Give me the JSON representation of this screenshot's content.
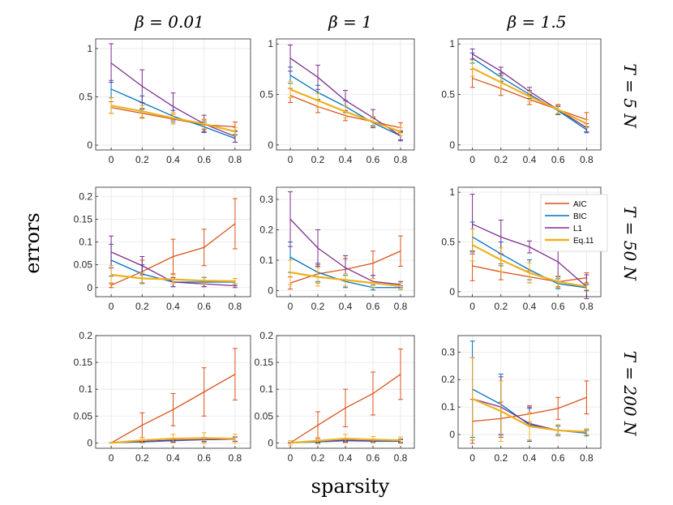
{
  "figure": {
    "xlabel": "sparsity",
    "ylabel": "errors",
    "col_titles": [
      "β = 0.01",
      "β = 1",
      "β = 1.5"
    ],
    "row_titles": [
      "T = 5 N",
      "T = 50 N",
      "T = 200 N"
    ],
    "colors": {
      "AIC": "#D95319",
      "BIC": "#0072BD",
      "L1": "#7E2F8E",
      "Eq.11": "#EDB120"
    }
  },
  "chart_data": [
    {
      "type": "line",
      "row": 0,
      "col": 0,
      "x": [
        0,
        0.2,
        0.4,
        0.6,
        0.8
      ],
      "xlim": [
        -0.1,
        0.9
      ],
      "ylim": [
        -0.05,
        1.1
      ],
      "yticks": [
        0,
        0.5,
        1
      ],
      "yticklabels": [
        "0",
        "0.5",
        "1"
      ],
      "xticklabels": [
        "0",
        "0.2",
        "0.4",
        "0.6",
        "0.8"
      ],
      "series": [
        {
          "name": "AIC",
          "values": [
            0.39,
            0.33,
            0.27,
            0.21,
            0.19
          ],
          "err": [
            0.06,
            0.05,
            0.05,
            0.05,
            0.05
          ]
        },
        {
          "name": "BIC",
          "values": [
            0.58,
            0.44,
            0.3,
            0.19,
            0.07
          ],
          "err": [
            0.09,
            0.07,
            0.06,
            0.05,
            0.04
          ]
        },
        {
          "name": "L1",
          "values": [
            0.85,
            0.61,
            0.4,
            0.22,
            0.09
          ],
          "err": [
            0.2,
            0.17,
            0.14,
            0.09,
            0.06
          ]
        },
        {
          "name": "Eq.11",
          "values": [
            0.41,
            0.35,
            0.28,
            0.22,
            0.14
          ],
          "err": [
            0.08,
            0.06,
            0.06,
            0.05,
            0.04
          ]
        }
      ]
    },
    {
      "type": "line",
      "row": 0,
      "col": 1,
      "x": [
        0,
        0.2,
        0.4,
        0.6,
        0.8
      ],
      "xlim": [
        -0.1,
        0.9
      ],
      "ylim": [
        -0.05,
        1.05
      ],
      "yticks": [
        0,
        0.5,
        1
      ],
      "yticklabels": [
        "0",
        "0.5",
        "1"
      ],
      "xticklabels": [
        "0",
        "0.2",
        "0.4",
        "0.6",
        "0.8"
      ],
      "series": [
        {
          "name": "AIC",
          "values": [
            0.49,
            0.38,
            0.29,
            0.23,
            0.17
          ],
          "err": [
            0.07,
            0.06,
            0.05,
            0.05,
            0.05
          ]
        },
        {
          "name": "BIC",
          "values": [
            0.69,
            0.52,
            0.38,
            0.22,
            0.09
          ],
          "err": [
            0.08,
            0.07,
            0.06,
            0.05,
            0.04
          ]
        },
        {
          "name": "L1",
          "values": [
            0.86,
            0.67,
            0.44,
            0.27,
            0.09
          ],
          "err": [
            0.13,
            0.12,
            0.1,
            0.08,
            0.05
          ]
        },
        {
          "name": "Eq.11",
          "values": [
            0.55,
            0.44,
            0.33,
            0.23,
            0.13
          ],
          "err": [
            0.08,
            0.07,
            0.06,
            0.05,
            0.04
          ]
        }
      ]
    },
    {
      "type": "line",
      "row": 0,
      "col": 2,
      "x": [
        0,
        0.2,
        0.4,
        0.6,
        0.8
      ],
      "xlim": [
        -0.1,
        0.9
      ],
      "ylim": [
        -0.05,
        1.05
      ],
      "yticks": [
        0,
        0.5,
        1
      ],
      "yticklabels": [
        "0",
        "0.5",
        "1"
      ],
      "xticklabels": [
        "0",
        "0.2",
        "0.4",
        "0.6",
        "0.8"
      ],
      "series": [
        {
          "name": "AIC",
          "values": [
            0.66,
            0.56,
            0.45,
            0.35,
            0.25
          ],
          "err": [
            0.09,
            0.07,
            0.05,
            0.05,
            0.07
          ]
        },
        {
          "name": "BIC",
          "values": [
            0.86,
            0.67,
            0.5,
            0.34,
            0.15
          ],
          "err": [
            0.05,
            0.04,
            0.04,
            0.04,
            0.03
          ]
        },
        {
          "name": "L1",
          "values": [
            0.9,
            0.73,
            0.53,
            0.35,
            0.17
          ],
          "err": [
            0.05,
            0.04,
            0.04,
            0.04,
            0.04
          ]
        },
        {
          "name": "Eq.11",
          "values": [
            0.76,
            0.62,
            0.48,
            0.35,
            0.21
          ],
          "err": [
            0.08,
            0.06,
            0.05,
            0.04,
            0.04
          ]
        }
      ]
    },
    {
      "type": "line",
      "row": 1,
      "col": 0,
      "x": [
        0,
        0.2,
        0.4,
        0.6,
        0.8
      ],
      "xlim": [
        -0.1,
        0.9
      ],
      "ylim": [
        -0.02,
        0.22
      ],
      "yticks": [
        0,
        0.05,
        0.1,
        0.15,
        0.2
      ],
      "yticklabels": [
        "0",
        "0.05",
        "0.1",
        "0.15",
        "0.2"
      ],
      "xticklabels": [
        "0",
        "0.2",
        "0.4",
        "0.6",
        "0.8"
      ],
      "series": [
        {
          "name": "AIC",
          "values": [
            0.005,
            0.035,
            0.068,
            0.088,
            0.14
          ],
          "err": [
            0.005,
            0.025,
            0.038,
            0.04,
            0.055
          ]
        },
        {
          "name": "BIC",
          "values": [
            0.06,
            0.03,
            0.012,
            0.012,
            0.012
          ],
          "err": [
            0.035,
            0.02,
            0.01,
            0.01,
            0.008
          ]
        },
        {
          "name": "L1",
          "values": [
            0.078,
            0.048,
            0.012,
            0.008,
            0.004
          ],
          "err": [
            0.035,
            0.02,
            0.01,
            0.006,
            0.004
          ]
        },
        {
          "name": "Eq.11",
          "values": [
            0.028,
            0.02,
            0.018,
            0.015,
            0.014
          ],
          "err": [
            0.02,
            0.012,
            0.01,
            0.008,
            0.006
          ]
        }
      ]
    },
    {
      "type": "line",
      "row": 1,
      "col": 1,
      "x": [
        0,
        0.2,
        0.4,
        0.6,
        0.8
      ],
      "xlim": [
        -0.1,
        0.9
      ],
      "ylim": [
        -0.02,
        0.34
      ],
      "yticks": [
        0,
        0.1,
        0.2,
        0.3
      ],
      "yticklabels": [
        "0",
        "0.1",
        "0.2",
        "0.3"
      ],
      "xticklabels": [
        "0",
        "0.2",
        "0.4",
        "0.6",
        "0.8"
      ],
      "series": [
        {
          "name": "AIC",
          "values": [
            0.025,
            0.055,
            0.07,
            0.09,
            0.13
          ],
          "err": [
            0.02,
            0.03,
            0.035,
            0.04,
            0.05
          ]
        },
        {
          "name": "BIC",
          "values": [
            0.11,
            0.06,
            0.03,
            0.01,
            0.01
          ],
          "err": [
            0.05,
            0.03,
            0.02,
            0.008,
            0.006
          ]
        },
        {
          "name": "L1",
          "values": [
            0.235,
            0.14,
            0.075,
            0.03,
            0.02
          ],
          "err": [
            0.09,
            0.06,
            0.04,
            0.02,
            0.01
          ]
        },
        {
          "name": "Eq.11",
          "values": [
            0.06,
            0.045,
            0.035,
            0.025,
            0.015
          ],
          "err": [
            0.04,
            0.03,
            0.02,
            0.015,
            0.01
          ]
        }
      ]
    },
    {
      "type": "line",
      "row": 1,
      "col": 2,
      "x": [
        0,
        0.2,
        0.4,
        0.6,
        0.8
      ],
      "xlim": [
        -0.1,
        0.9
      ],
      "ylim": [
        -0.05,
        1.05
      ],
      "yticks": [
        0,
        0.5,
        1
      ],
      "yticklabels": [
        "0",
        "0.5",
        "1"
      ],
      "xticklabels": [
        "0",
        "0.2",
        "0.4",
        "0.6",
        "0.8"
      ],
      "series": [
        {
          "name": "AIC",
          "values": [
            0.26,
            0.2,
            0.15,
            0.1,
            0.14
          ],
          "err": [
            0.15,
            0.08,
            0.06,
            0.05,
            0.05
          ]
        },
        {
          "name": "BIC",
          "values": [
            0.55,
            0.38,
            0.22,
            0.08,
            0.04
          ],
          "err": [
            0.15,
            0.12,
            0.1,
            0.05,
            0.03
          ]
        },
        {
          "name": "L1",
          "values": [
            0.68,
            0.55,
            0.45,
            0.3,
            0.05
          ],
          "err": [
            0.3,
            0.17,
            0.06,
            0.15,
            0.12
          ]
        },
        {
          "name": "Eq.11",
          "values": [
            0.47,
            0.32,
            0.19,
            0.1,
            0.05
          ],
          "err": [
            0.16,
            0.12,
            0.1,
            0.06,
            0.03
          ]
        }
      ]
    },
    {
      "type": "line",
      "row": 2,
      "col": 0,
      "x": [
        0,
        0.2,
        0.4,
        0.6,
        0.8
      ],
      "xlim": [
        -0.1,
        0.9
      ],
      "ylim": [
        -0.01,
        0.2
      ],
      "yticks": [
        0,
        0.05,
        0.1,
        0.15,
        0.2
      ],
      "yticklabels": [
        "0",
        "0.05",
        "0.1",
        "0.15",
        "0.2"
      ],
      "xticklabels": [
        "0",
        "0.2",
        "0.4",
        "0.6",
        "0.8"
      ],
      "series": [
        {
          "name": "AIC",
          "values": [
            0,
            0.033,
            0.062,
            0.095,
            0.128
          ],
          "err": [
            0,
            0.023,
            0.03,
            0.045,
            0.048
          ]
        },
        {
          "name": "BIC",
          "values": [
            0,
            0.002,
            0.004,
            0.006,
            0.007
          ],
          "err": [
            0,
            0.002,
            0.003,
            0.004,
            0.004
          ]
        },
        {
          "name": "L1",
          "values": [
            0,
            0.003,
            0.005,
            0.006,
            0.007
          ],
          "err": [
            0,
            0.002,
            0.003,
            0.003,
            0.004
          ]
        },
        {
          "name": "Eq.11",
          "values": [
            0,
            0.005,
            0.008,
            0.009,
            0.008
          ],
          "err": [
            0,
            0.005,
            0.008,
            0.01,
            0.008
          ]
        }
      ]
    },
    {
      "type": "line",
      "row": 2,
      "col": 1,
      "x": [
        0,
        0.2,
        0.4,
        0.6,
        0.8
      ],
      "xlim": [
        -0.1,
        0.9
      ],
      "ylim": [
        -0.01,
        0.2
      ],
      "yticks": [
        0,
        0.05,
        0.1,
        0.15,
        0.2
      ],
      "yticklabels": [
        "0",
        "0.05",
        "0.1",
        "0.15",
        "0.2"
      ],
      "xticklabels": [
        "0",
        "0.2",
        "0.4",
        "0.6",
        "0.8"
      ],
      "series": [
        {
          "name": "AIC",
          "values": [
            0,
            0.033,
            0.065,
            0.092,
            0.128
          ],
          "err": [
            0,
            0.025,
            0.035,
            0.04,
            0.047
          ]
        },
        {
          "name": "BIC",
          "values": [
            0,
            0.002,
            0.004,
            0.003,
            0.003
          ],
          "err": [
            0,
            0.002,
            0.003,
            0.003,
            0.003
          ]
        },
        {
          "name": "L1",
          "values": [
            0,
            0.003,
            0.005,
            0.004,
            0.004
          ],
          "err": [
            0,
            0.002,
            0.003,
            0.003,
            0.003
          ]
        },
        {
          "name": "Eq.11",
          "values": [
            0,
            0.004,
            0.008,
            0.006,
            0.005
          ],
          "err": [
            0.004,
            0.006,
            0.008,
            0.006,
            0.006
          ]
        }
      ]
    },
    {
      "type": "line",
      "row": 2,
      "col": 2,
      "x": [
        0,
        0.2,
        0.4,
        0.6,
        0.8
      ],
      "xlim": [
        -0.1,
        0.9
      ],
      "ylim": [
        -0.05,
        0.36
      ],
      "yticks": [
        0,
        0.1,
        0.2,
        0.3
      ],
      "yticklabels": [
        "0",
        "0.1",
        "0.2",
        "0.3"
      ],
      "xticklabels": [
        "0",
        "0.2",
        "0.4",
        "0.6",
        "0.8"
      ],
      "series": [
        {
          "name": "AIC",
          "values": [
            0.048,
            0.058,
            0.075,
            0.095,
            0.135
          ],
          "err": [
            0.08,
            0.06,
            0.03,
            0.04,
            0.06
          ]
        },
        {
          "name": "BIC",
          "values": [
            0.165,
            0.11,
            0.035,
            0.015,
            0.005
          ],
          "err": [
            0.175,
            0.11,
            0.06,
            0.015,
            0.01
          ]
        },
        {
          "name": "L1",
          "values": [
            0.13,
            0.1,
            0.04,
            0.015,
            0.01
          ],
          "err": [
            0.15,
            0.11,
            0.06,
            0.02,
            0.01
          ]
        },
        {
          "name": "Eq.11",
          "values": [
            0.13,
            0.085,
            0.03,
            0.015,
            0.01
          ],
          "err": [
            0.15,
            0.11,
            0.05,
            0.02,
            0.01
          ]
        }
      ]
    }
  ]
}
